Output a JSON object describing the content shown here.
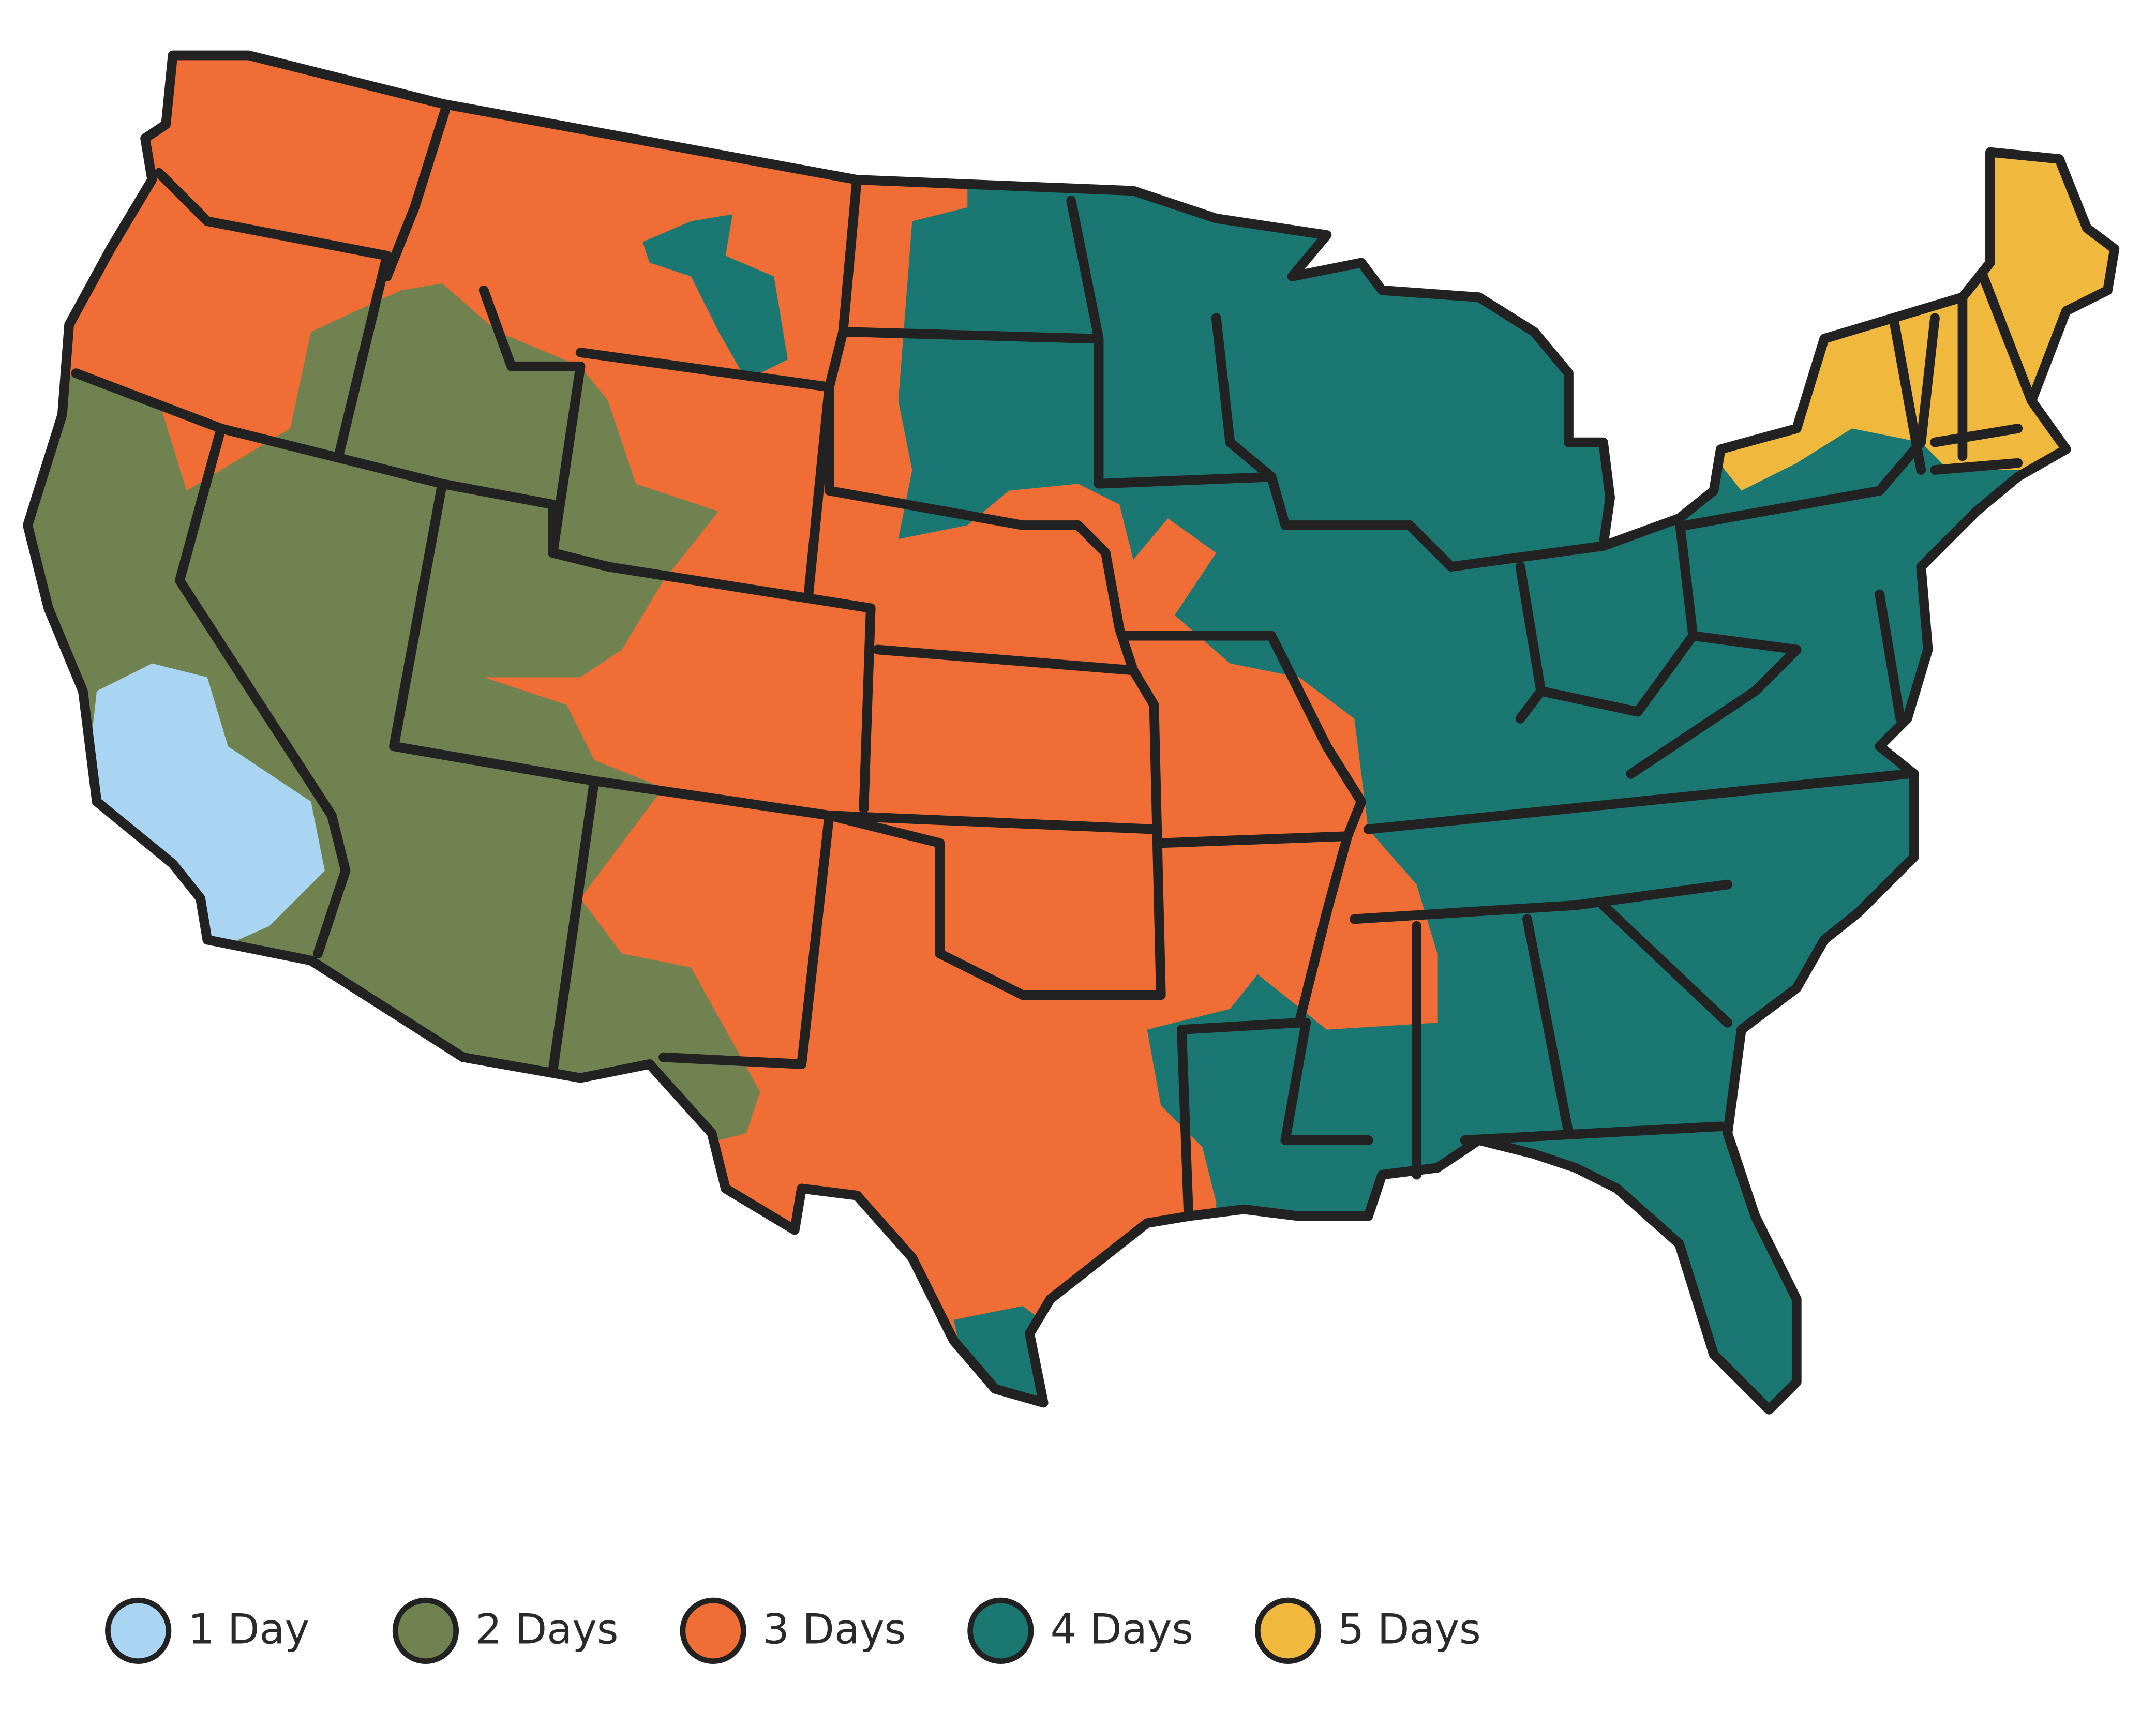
{
  "legend": {
    "items": [
      {
        "label": "1 Day",
        "color": "#a9d5f3"
      },
      {
        "label": "2 Days",
        "color": "#6f8250"
      },
      {
        "label": "3 Days",
        "color": "#f06d36"
      },
      {
        "label": "4 Days",
        "color": "#1b7772"
      },
      {
        "label": "5 Days",
        "color": "#f0b93e"
      }
    ]
  }
}
